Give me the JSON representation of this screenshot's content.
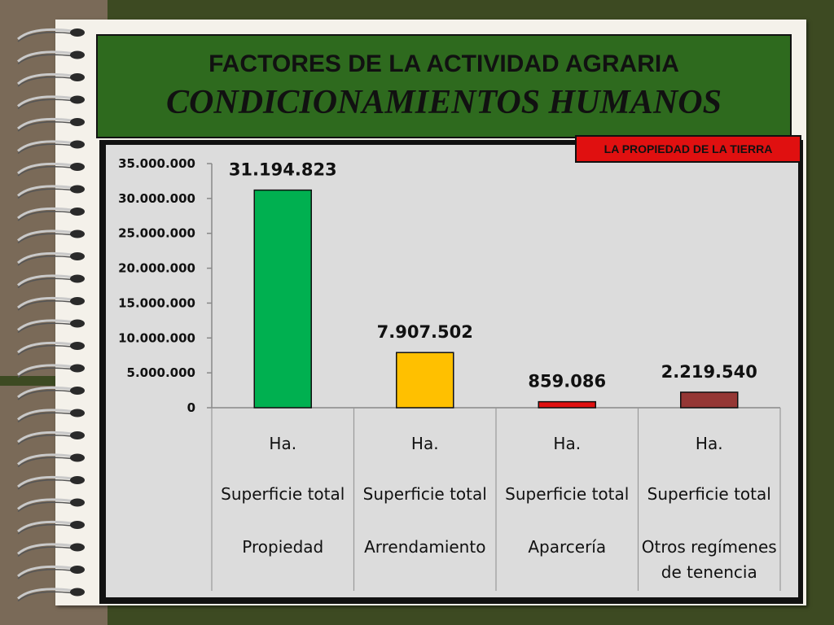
{
  "title": {
    "line1": "FACTORES DE LA ACTIVIDAD AGRARIA",
    "line2": "CONDICIONAMIENTOS HUMANOS"
  },
  "badge": "LA PROPIEDAD DE LA TIERRA",
  "colors": {
    "background": "#3d4a22",
    "title_box": "#2e6a1e",
    "badge": "#e01010",
    "plot_area": "#dcdcdc"
  },
  "chart_data": {
    "type": "bar",
    "title": "",
    "xlabel": "",
    "ylabel": "",
    "ylim": [
      0,
      35000000
    ],
    "yticks": [
      0,
      5000000,
      10000000,
      15000000,
      20000000,
      25000000,
      30000000,
      35000000
    ],
    "ytick_labels": [
      "0",
      "5.000.000",
      "10.000.000",
      "15.000.000",
      "20.000.000",
      "25.000.000",
      "30.000.000",
      "35.000.000"
    ],
    "grid": false,
    "categories": [
      [
        "Ha.",
        "Superficie total",
        "Propiedad"
      ],
      [
        "Ha.",
        "Superficie total",
        "Arrendamiento"
      ],
      [
        "Ha.",
        "Superficie total",
        "Aparcería"
      ],
      [
        "Ha.",
        "Superficie total",
        "Otros regímenes",
        "de tenencia"
      ]
    ],
    "values": [
      31194823,
      7907502,
      859086,
      2219540
    ],
    "data_labels": [
      "31.194.823",
      "7.907.502",
      "859.086",
      "2.219.540"
    ],
    "bar_colors": [
      "#00b050",
      "#ffc000",
      "#e01010",
      "#953735"
    ]
  }
}
